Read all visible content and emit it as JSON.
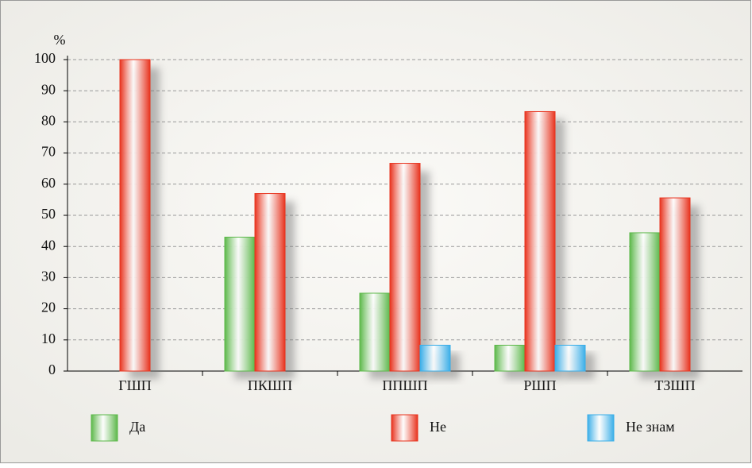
{
  "chart_data": {
    "type": "bar",
    "y_label": "%",
    "categories": [
      "ГШП",
      "ПКШП",
      "ППШП",
      "РШП",
      "ТЗШП"
    ],
    "series": [
      {
        "name": "Да",
        "color": "#5cb84a",
        "values": [
          0,
          43,
          25,
          8.3,
          44.4
        ]
      },
      {
        "name": "Не",
        "color": "#e8331e",
        "values": [
          100,
          57,
          66.7,
          83.3,
          55.6
        ]
      },
      {
        "name": "Не знам",
        "color": "#3aaee8",
        "values": [
          0,
          0,
          8.3,
          8.3,
          0
        ]
      }
    ],
    "ylim": [
      0,
      100
    ],
    "yticks": [
      0,
      10,
      20,
      30,
      40,
      50,
      60,
      70,
      80,
      90,
      100
    ],
    "grid": true
  }
}
